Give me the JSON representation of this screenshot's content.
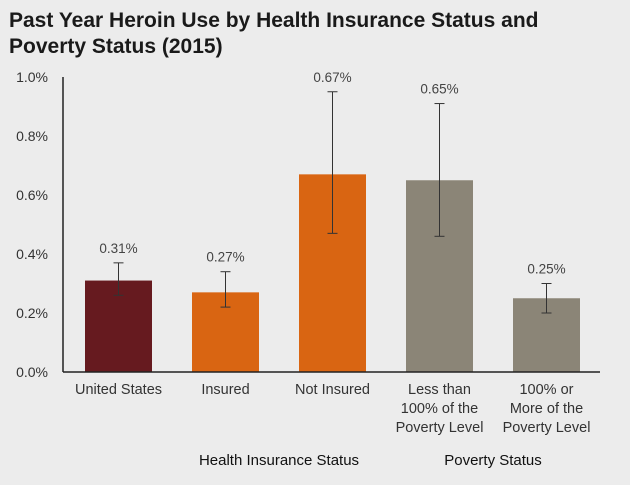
{
  "chart_data": {
    "type": "bar",
    "title": "Past Year Heroin Use by Health Insurance Status and\nPoverty Status (2015)",
    "xlabel": "",
    "ylabel": "",
    "ylim": [
      0,
      1.0
    ],
    "yticks": [
      {
        "value": 0.0,
        "label": "0.0%"
      },
      {
        "value": 0.2,
        "label": "0.2%"
      },
      {
        "value": 0.4,
        "label": "0.4%"
      },
      {
        "value": 0.6,
        "label": "0.6%"
      },
      {
        "value": 0.8,
        "label": "0.8%"
      },
      {
        "value": 1.0,
        "label": "1.0%"
      }
    ],
    "bars": [
      {
        "category": [
          "United States"
        ],
        "value": 0.31,
        "label": "0.31%",
        "err_low": 0.26,
        "err_high": 0.37,
        "color": "#661a1f"
      },
      {
        "category": [
          "Insured"
        ],
        "value": 0.27,
        "label": "0.27%",
        "err_low": 0.22,
        "err_high": 0.34,
        "color": "#d96512"
      },
      {
        "category": [
          "Not Insured"
        ],
        "value": 0.67,
        "label": "0.67%",
        "err_low": 0.47,
        "err_high": 0.95,
        "color": "#d96512"
      },
      {
        "category": [
          "Less than",
          "100% of the",
          "Poverty Level"
        ],
        "value": 0.65,
        "label": "0.65%",
        "err_low": 0.46,
        "err_high": 0.91,
        "color": "#8b8577"
      },
      {
        "category": [
          "100% or",
          "More of the",
          "Poverty Level"
        ],
        "value": 0.25,
        "label": "0.25%",
        "err_low": 0.2,
        "err_high": 0.3,
        "color": "#8b8577"
      }
    ],
    "groups": [
      {
        "label": "Health Insurance Status",
        "bars": [
          1,
          2
        ]
      },
      {
        "label": "Poverty Status",
        "bars": [
          3,
          4
        ]
      }
    ],
    "grid": false,
    "legend": "none"
  }
}
